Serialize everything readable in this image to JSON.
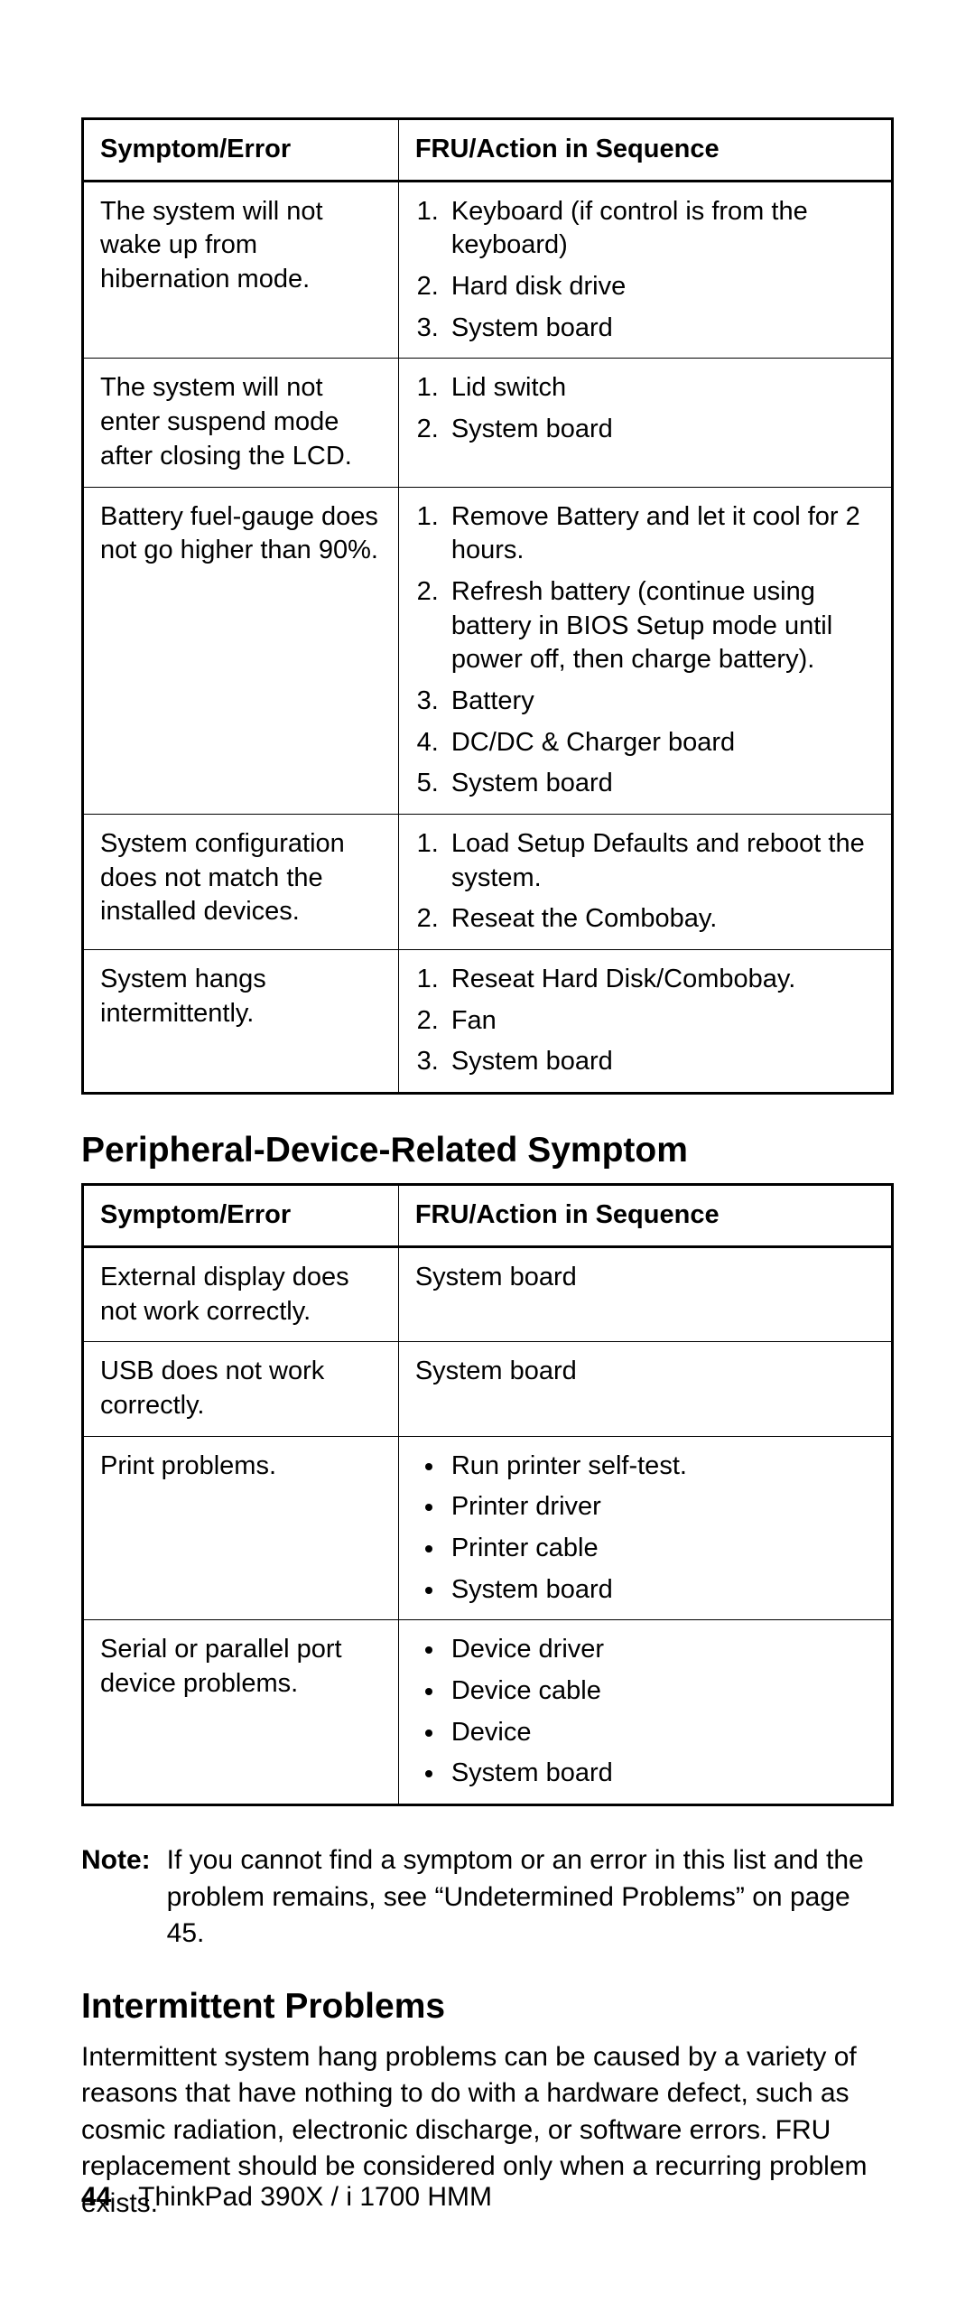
{
  "table1": {
    "headers": {
      "left": "Symptom/Error",
      "right": "FRU/Action in Sequence"
    },
    "rows": [
      {
        "symptom": "The system will not wake up from hibernation mode.",
        "actions": [
          "Keyboard (if control is from the keyboard)",
          "Hard disk drive",
          "System board"
        ]
      },
      {
        "symptom": "The system will not enter suspend mode after closing the LCD.",
        "actions": [
          "Lid switch",
          "System board"
        ]
      },
      {
        "symptom": "Battery fuel-gauge does not go higher than 90%.",
        "actions": [
          "Remove Battery and let it cool for 2 hours.",
          "Refresh battery (continue using battery in BIOS Setup mode until power off, then charge battery).",
          "Battery",
          "DC/DC & Charger board",
          "System board"
        ]
      },
      {
        "symptom": "System configuration does not match the installed devices.",
        "actions": [
          "Load Setup Defaults and reboot the system.",
          "Reseat the Combobay."
        ]
      },
      {
        "symptom": "System hangs intermittently.",
        "actions": [
          "Reseat Hard Disk/Combobay.",
          "Fan",
          "System board"
        ]
      }
    ]
  },
  "heading1": "Peripheral-Device-Related Symptom",
  "table2": {
    "headers": {
      "left": "Symptom/Error",
      "right": "FRU/Action in Sequence"
    },
    "rows": [
      {
        "symptom": "External display does not work correctly.",
        "plain": "System board"
      },
      {
        "symptom": "USB does not work correctly.",
        "plain": "System board"
      },
      {
        "symptom": "Print problems.",
        "bullets": [
          "Run printer self-test.",
          "Printer driver",
          "Printer cable",
          "System board"
        ]
      },
      {
        "symptom": "Serial or parallel port device problems.",
        "bullets": [
          "Device driver",
          "Device cable",
          "Device",
          "System board"
        ]
      }
    ]
  },
  "note": {
    "label": "Note:",
    "text": "If you cannot find a symptom or an error in this list and the problem remains, see “Undetermined Problems” on page 45."
  },
  "heading2": "Intermittent Problems",
  "paragraph": "Intermittent system hang problems can be caused by a variety of reasons that have nothing to do with a hardware defect, such as cosmic radiation, electronic discharge, or software errors. FRU replacement should be considered only when a recurring problem exists.",
  "footer": {
    "page": "44",
    "title": "ThinkPad 390X / i 1700 HMM"
  }
}
